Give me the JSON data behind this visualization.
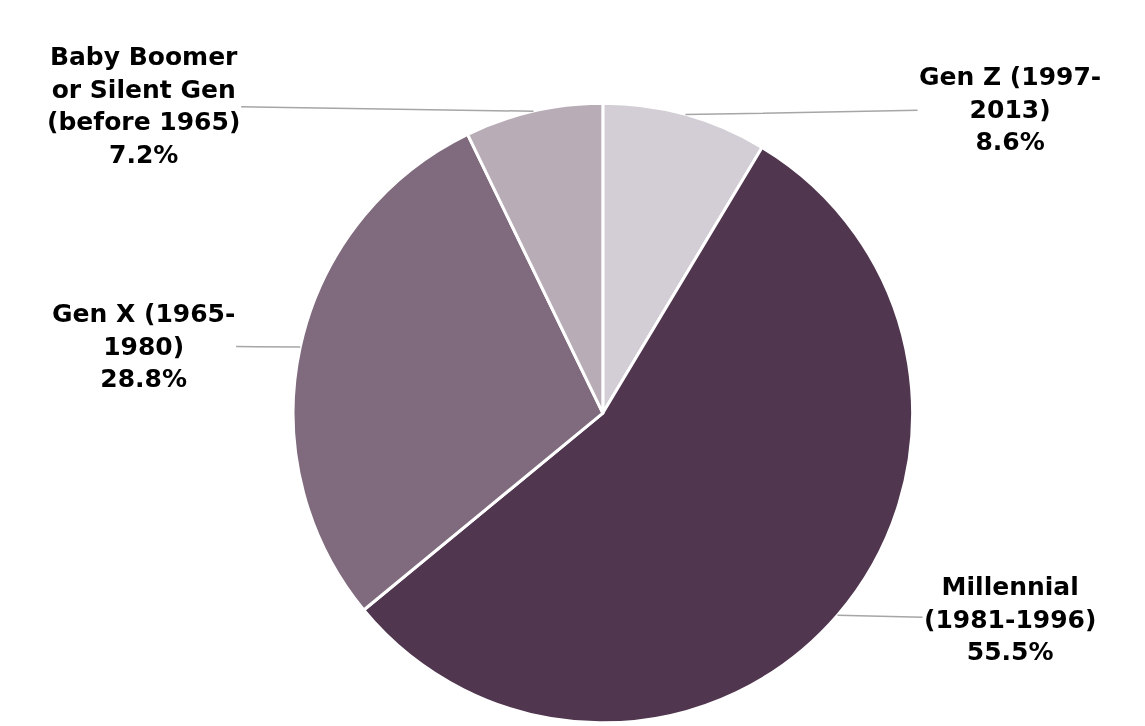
{
  "chart_data": {
    "type": "pie",
    "categories": [
      "Gen Z (1997-2013)",
      "Millennial (1981-1996)",
      "Gen X (1965-1980)",
      "Baby Boomer or Silent Gen (before 1965)"
    ],
    "values": [
      8.6,
      55.5,
      28.8,
      7.2
    ],
    "value_labels": [
      "8.6%",
      "55.5%",
      "28.8%",
      "7.2%"
    ],
    "colors": [
      "#d3ced5",
      "#50364e",
      "#7f6b7d",
      "#b8adb6"
    ],
    "legend": false
  }
}
